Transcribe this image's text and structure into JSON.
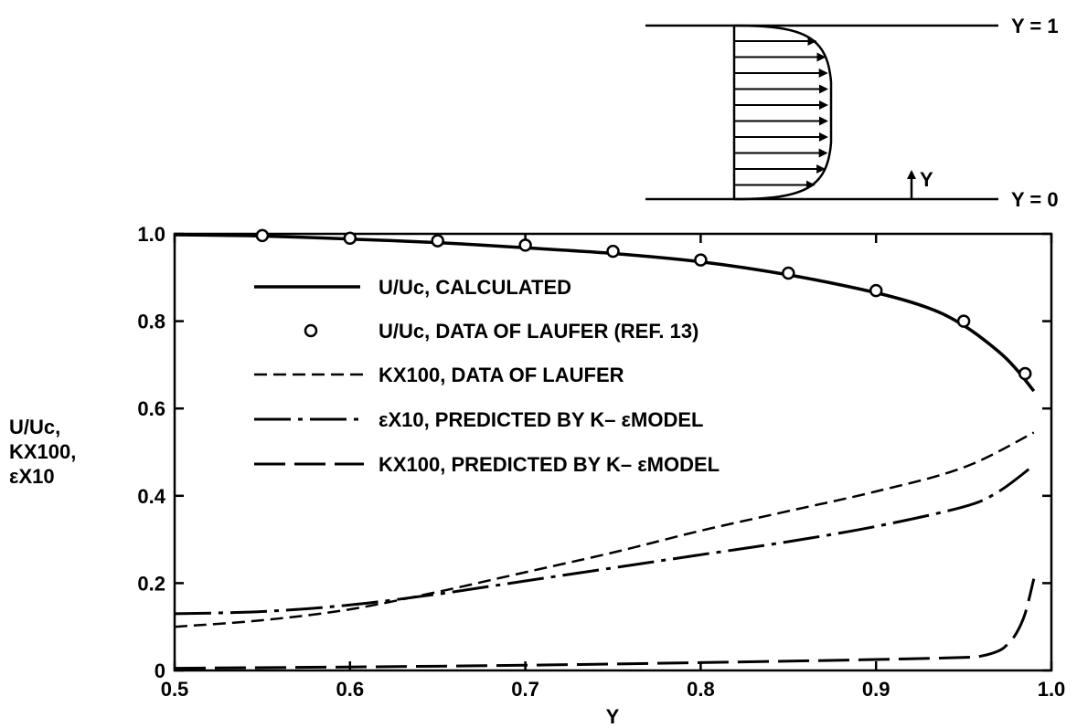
{
  "chart_data": {
    "type": "line",
    "xlabel": "Y",
    "ylabel": [
      "U/Uc,",
      "KX100,",
      "εX10"
    ],
    "xlim": [
      0.5,
      1.0
    ],
    "ylim": [
      0,
      1.0
    ],
    "xticks": [
      "0.5",
      "0.6",
      "0.7",
      "0.8",
      "0.9",
      "1.0"
    ],
    "yticks": [
      "0",
      "0.2",
      "0.4",
      "0.6",
      "0.8",
      "1.0"
    ],
    "grid": false,
    "legend_position": "inside-upper-center",
    "series": [
      {
        "name": "U/Uc, CALCULATED",
        "style": "solid",
        "x": [
          0.5,
          0.55,
          0.6,
          0.65,
          0.7,
          0.75,
          0.8,
          0.85,
          0.9,
          0.93,
          0.95,
          0.97,
          0.98,
          0.99
        ],
        "y": [
          0.998,
          0.995,
          0.988,
          0.98,
          0.968,
          0.955,
          0.936,
          0.906,
          0.865,
          0.83,
          0.79,
          0.73,
          0.69,
          0.64
        ]
      },
      {
        "name": "U/Uc, DATA OF LAUFER (REF. 13)",
        "style": "markers",
        "x": [
          0.55,
          0.6,
          0.65,
          0.7,
          0.75,
          0.8,
          0.85,
          0.9,
          0.95,
          0.985
        ],
        "y": [
          0.996,
          0.99,
          0.984,
          0.974,
          0.96,
          0.94,
          0.91,
          0.87,
          0.8,
          0.68
        ]
      },
      {
        "name": "KX100, DATA OF LAUFER",
        "style": "short-dash",
        "x": [
          0.5,
          0.55,
          0.6,
          0.65,
          0.7,
          0.75,
          0.8,
          0.85,
          0.9,
          0.95,
          0.99
        ],
        "y": [
          0.1,
          0.115,
          0.14,
          0.18,
          0.225,
          0.27,
          0.32,
          0.365,
          0.41,
          0.465,
          0.545
        ]
      },
      {
        "name": "εX10, PREDICTED BY K– εMODEL",
        "style": "dash-dot",
        "x": [
          0.5,
          0.55,
          0.6,
          0.65,
          0.7,
          0.75,
          0.8,
          0.85,
          0.9,
          0.95,
          0.97,
          0.99
        ],
        "y": [
          0.13,
          0.135,
          0.15,
          0.175,
          0.205,
          0.235,
          0.265,
          0.295,
          0.33,
          0.375,
          0.41,
          0.47
        ]
      },
      {
        "name": "KX100, PREDICTED BY K– εMODEL",
        "style": "long-dash",
        "x": [
          0.5,
          0.6,
          0.7,
          0.8,
          0.9,
          0.95,
          0.96,
          0.97,
          0.975,
          0.98,
          0.985,
          0.99
        ],
        "y": [
          0.005,
          0.008,
          0.012,
          0.018,
          0.025,
          0.03,
          0.033,
          0.045,
          0.06,
          0.085,
          0.13,
          0.21
        ]
      }
    ]
  },
  "schematic": {
    "top_label": "Y = 1",
    "bottom_label": "Y = 0",
    "axis_label": "Y"
  }
}
